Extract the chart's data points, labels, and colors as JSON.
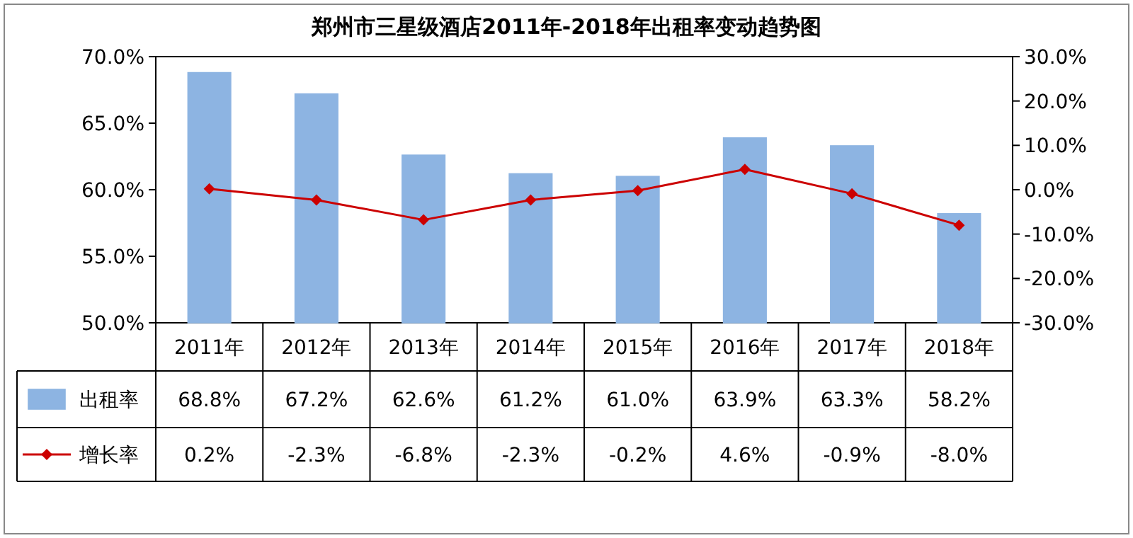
{
  "chart_data": {
    "type": "bar",
    "title": "郑州市三星级酒店2011年-2018年出租率变动趋势图",
    "categories": [
      "2011年",
      "2012年",
      "2013年",
      "2014年",
      "2015年",
      "2016年",
      "2017年",
      "2018年"
    ],
    "series": [
      {
        "name": "出租率",
        "type": "bar",
        "color": "#8db4e2",
        "values": [
          68.8,
          67.2,
          62.6,
          61.2,
          61.0,
          63.9,
          63.3,
          58.2
        ],
        "value_labels": [
          "68.8%",
          "67.2%",
          "62.6%",
          "61.2%",
          "61.0%",
          "63.9%",
          "63.3%",
          "58.2%"
        ]
      },
      {
        "name": "增长率",
        "type": "line",
        "axis": "y2",
        "color": "#cc0000",
        "marker": "diamond",
        "values": [
          0.2,
          -2.3,
          -6.8,
          -2.3,
          -0.2,
          4.6,
          -0.9,
          -8.0
        ],
        "value_labels": [
          "0.2%",
          "-2.3%",
          "-6.8%",
          "-2.3%",
          "-0.2%",
          "4.6%",
          "-0.9%",
          "-8.0%"
        ]
      }
    ],
    "ylim": [
      50,
      70
    ],
    "yticks": [
      {
        "value": 50,
        "label": "50.0%"
      },
      {
        "value": 55,
        "label": "55.0%"
      },
      {
        "value": 60,
        "label": "60.0%"
      },
      {
        "value": 65,
        "label": "65.0%"
      },
      {
        "value": 70,
        "label": "70.0%"
      }
    ],
    "y2lim": [
      -30,
      30
    ],
    "y2ticks": [
      {
        "value": -30,
        "label": "-30.0%"
      },
      {
        "value": -20,
        "label": "-20.0%"
      },
      {
        "value": -10,
        "label": "-10.0%"
      },
      {
        "value": 0,
        "label": "0.0%"
      },
      {
        "value": 10,
        "label": "10.0%"
      },
      {
        "value": 20,
        "label": "20.0%"
      },
      {
        "value": 30,
        "label": "30.0%"
      }
    ],
    "legend": "bottom left"
  }
}
